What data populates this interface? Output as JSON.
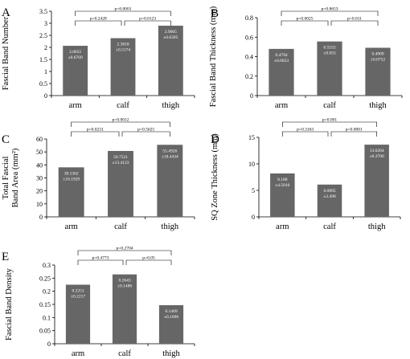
{
  "chart_data": [
    {
      "type": "bar",
      "panel": "A",
      "ylabel": "Fascial Band Number",
      "categories": [
        "arm",
        "calf",
        "thigh"
      ],
      "values": [
        2.0655,
        2.3818,
        2.9005
      ],
      "errors": [
        0.6709,
        0.5174,
        0.6395
      ],
      "ylim": [
        0,
        3.5
      ],
      "yticks": [
        0,
        0.5,
        1,
        1.5,
        2,
        2.5,
        3,
        3.5
      ],
      "value_labels": [
        [
          "2.0655",
          "±0.6709"
        ],
        [
          "2.3818",
          "±0.5174"
        ],
        [
          "2.9005",
          "±0.6395"
        ]
      ],
      "comparisons": [
        {
          "from": 0,
          "to": 1,
          "label": "p=0.2428"
        },
        {
          "from": 1,
          "to": 2,
          "label": "p=0.0123"
        },
        {
          "from": 0,
          "to": 2,
          "label": "p=0.0001"
        }
      ]
    },
    {
      "type": "bar",
      "panel": "B",
      "ylabel": "Fascial Band Thickness (mm)",
      "categories": [
        "arm",
        "calf",
        "thigh"
      ],
      "values": [
        0.4794,
        0.5555,
        0.4909
      ],
      "errors": [
        0.0653,
        0.055,
        0.0752
      ],
      "ylim": [
        0,
        0.8
      ],
      "yticks": [
        0,
        0.2,
        0.4,
        0.6,
        0.8
      ],
      "value_labels": [
        [
          "0.4794",
          "±0.0653"
        ],
        [
          "0.5555",
          "±0.055"
        ],
        [
          "0.4909",
          "±0.0752"
        ]
      ],
      "comparisons": [
        {
          "from": 0,
          "to": 1,
          "label": "p=0.0025"
        },
        {
          "from": 1,
          "to": 2,
          "label": "p=0.011"
        },
        {
          "from": 0,
          "to": 2,
          "label": "p=0.8653"
        }
      ]
    },
    {
      "type": "bar",
      "panel": "C",
      "ylabel": [
        "Total Fascial",
        "Band Area (mm²)"
      ],
      "categories": [
        "arm",
        "calf",
        "thigh"
      ],
      "values": [
        38.1302,
        50.7521,
        55.4926
      ],
      "errors": [
        16.1929,
        13.4123,
        18.4434
      ],
      "ylim": [
        0,
        60
      ],
      "yticks": [
        0,
        10,
        20,
        30,
        40,
        50,
        60
      ],
      "value_labels": [
        [
          "38.1302",
          "±16.1929"
        ],
        [
          "50.7521",
          "±13.4123"
        ],
        [
          "55.4926",
          "±18.4434"
        ]
      ],
      "comparisons": [
        {
          "from": 0,
          "to": 1,
          "label": "p=0.0231"
        },
        {
          "from": 1,
          "to": 2,
          "label": "p=0.5625"
        },
        {
          "from": 0,
          "to": 2,
          "label": "p=0.0012"
        }
      ]
    },
    {
      "type": "bar",
      "panel": "D",
      "ylabel": "SQ Zone Thickness (mm)",
      "categories": [
        "arm",
        "calf",
        "thigh"
      ],
      "values": [
        8.188,
        6.0895,
        13.6204
      ],
      "errors": [
        4.5016,
        2.498,
        6.3706
      ],
      "ylim": [
        0,
        15
      ],
      "yticks": [
        0,
        5,
        10,
        15
      ],
      "value_labels": [
        [
          "8.188",
          "±4.5016"
        ],
        [
          "6.0895",
          "±2.498"
        ],
        [
          "13.6204",
          "±6.3706"
        ]
      ],
      "comparisons": [
        {
          "from": 0,
          "to": 1,
          "label": "p=0.3163"
        },
        {
          "from": 1,
          "to": 2,
          "label": "p=0.0001"
        },
        {
          "from": 0,
          "to": 2,
          "label": "p=0.001"
        }
      ]
    },
    {
      "type": "bar",
      "panel": "E",
      "ylabel": "Fascial Band Density",
      "categories": [
        "arm",
        "calf",
        "thigh"
      ],
      "values": [
        0.2251,
        0.2643,
        0.1469
      ],
      "errors": [
        0.2217,
        0.1486,
        0.1096
      ],
      "ylim": [
        0,
        0.3
      ],
      "yticks": [
        0,
        0.05,
        0.1,
        0.15,
        0.2,
        0.25,
        0.3
      ],
      "value_labels": [
        [
          "0.2251",
          "±0.2217"
        ],
        [
          "0.2643",
          "±0.1486"
        ],
        [
          "0.1469",
          "±0.1096"
        ]
      ],
      "comparisons": [
        {
          "from": 0,
          "to": 1,
          "label": "p=0.4773"
        },
        {
          "from": 1,
          "to": 2,
          "label": "p=0.05"
        },
        {
          "from": 0,
          "to": 2,
          "label": "p=0.2704"
        }
      ]
    }
  ]
}
